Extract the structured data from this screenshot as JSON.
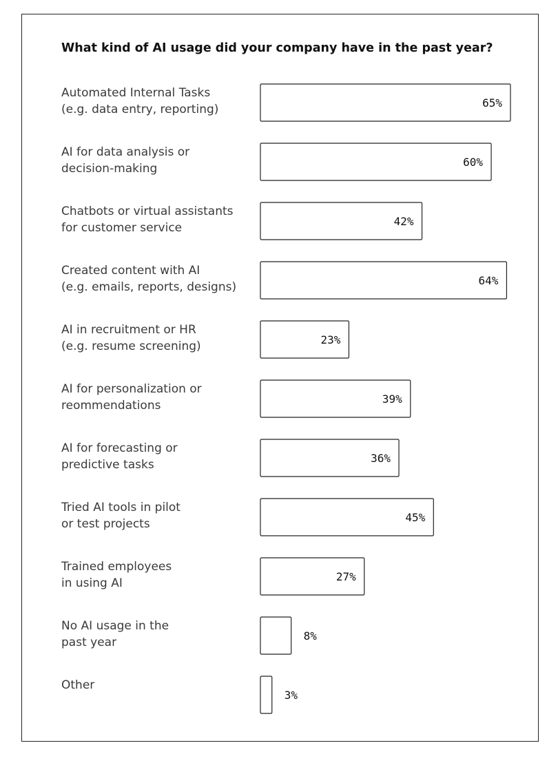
{
  "chart_data": {
    "type": "bar",
    "orientation": "horizontal",
    "title": "What kind of AI usage did your company have in the past year?",
    "unit_suffix": "%",
    "categories": [
      [
        "Automated Internal Tasks",
        "(e.g. data entry, reporting)"
      ],
      [
        "AI for data analysis or",
        "decision-making"
      ],
      [
        "Chatbots or virtual assistants",
        "for customer service"
      ],
      [
        "Created content with AI",
        "(e.g. emails, reports, designs)"
      ],
      [
        "AI in recruitment or HR",
        "(e.g. resume screening)"
      ],
      [
        "AI for personalization or",
        "reommendations"
      ],
      [
        "AI for forecasting or",
        "predictive tasks"
      ],
      [
        "Tried AI tools in pilot",
        "or test projects"
      ],
      [
        "Trained employees",
        "in using AI"
      ],
      [
        "No AI usage in the",
        "past year"
      ],
      [
        "Other"
      ]
    ],
    "values": [
      65,
      60,
      42,
      64,
      23,
      39,
      36,
      45,
      27,
      8,
      3
    ],
    "xlim": [
      0,
      65
    ],
    "grid": false,
    "legend": "none",
    "colors": {
      "bar_fill": "#ffffff",
      "bar_stroke": "#222222",
      "label_text": "#3a3a3a",
      "title_text": "#111111"
    }
  }
}
